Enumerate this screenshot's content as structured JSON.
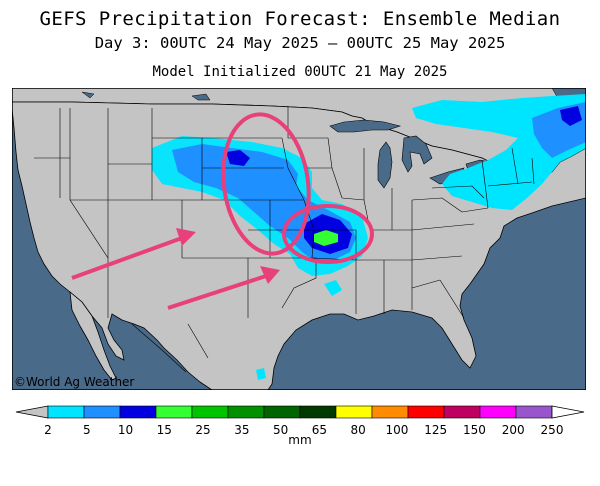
{
  "title": "GEFS Precipitation Forecast: Ensemble Median",
  "subtitle": "Day 3: 00UTC 24 May 2025 — 00UTC 25 May 2025",
  "init": "Model Initialized 00UTC 21 May 2025",
  "credit": "©World Ag Weather",
  "legend": {
    "unit": "mm",
    "ticks": [
      "2",
      "5",
      "10",
      "15",
      "25",
      "35",
      "50",
      "65",
      "80",
      "100",
      "125",
      "150",
      "200",
      "250"
    ],
    "colors": [
      "#00e5ff",
      "#1e90ff",
      "#0000e0",
      "#33ff33",
      "#00c400",
      "#009000",
      "#006400",
      "#003a00",
      "#ffff00",
      "#ff8c00",
      "#ff0000",
      "#c00060",
      "#ff00ff",
      "#9955cc"
    ]
  },
  "colors": {
    "ocean": "#4a6a8a",
    "land": "#c4c4c4",
    "annotation": "#e8407a"
  }
}
